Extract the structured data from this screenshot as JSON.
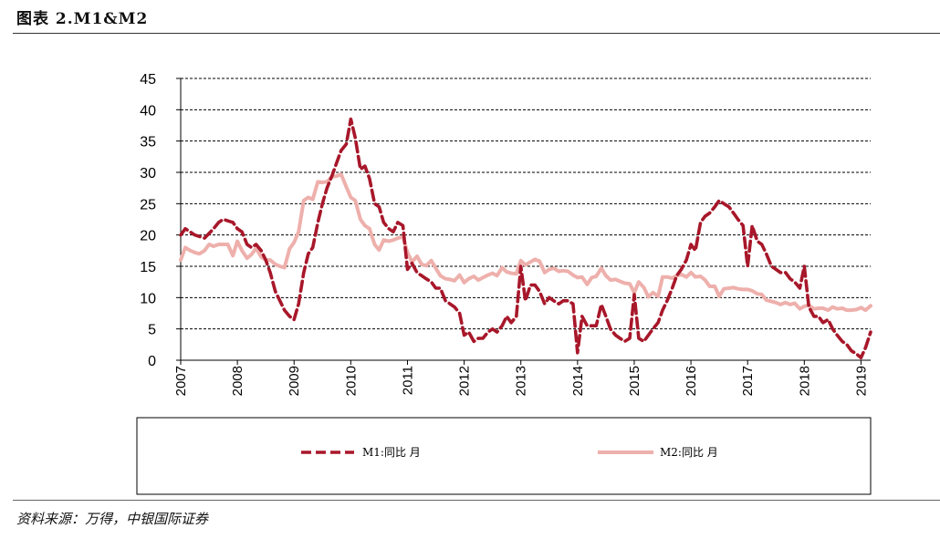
{
  "header": {
    "title": "图表 2.M1&M2"
  },
  "footer": {
    "source": "资料来源：万得，中银国际证券"
  },
  "chart_data": {
    "type": "line",
    "ylim": [
      0,
      45
    ],
    "yticks": [
      0,
      5,
      10,
      15,
      20,
      25,
      30,
      35,
      40,
      45
    ],
    "xlim": [
      2007.0,
      2019.17
    ],
    "xticks": [
      "2007",
      "2008",
      "2009",
      "2010",
      "2011",
      "2012",
      "2013",
      "2014",
      "2015",
      "2016",
      "2017",
      "2018",
      "2019"
    ],
    "grid": true,
    "legend_position": "bottom",
    "colors": {
      "m1": "#a8172a",
      "m2": "#eeb0ac"
    },
    "series": [
      {
        "name": "M1:同比 月",
        "style": "dashed",
        "points": [
          [
            2007.0,
            20.0
          ],
          [
            2007.08,
            21.0
          ],
          [
            2007.25,
            20.0
          ],
          [
            2007.42,
            19.5
          ],
          [
            2007.58,
            21.0
          ],
          [
            2007.67,
            22.0
          ],
          [
            2007.75,
            22.5
          ],
          [
            2007.92,
            22.0
          ],
          [
            2008.0,
            21.0
          ],
          [
            2008.08,
            20.5
          ],
          [
            2008.17,
            18.5
          ],
          [
            2008.25,
            18.0
          ],
          [
            2008.33,
            18.5
          ],
          [
            2008.42,
            17.5
          ],
          [
            2008.5,
            16.0
          ],
          [
            2008.58,
            14.0
          ],
          [
            2008.67,
            11.0
          ],
          [
            2008.75,
            9.5
          ],
          [
            2008.83,
            8.0
          ],
          [
            2008.92,
            7.0
          ],
          [
            2009.0,
            6.5
          ],
          [
            2009.08,
            9.0
          ],
          [
            2009.17,
            14.0
          ],
          [
            2009.25,
            17.0
          ],
          [
            2009.33,
            18.0
          ],
          [
            2009.42,
            22.0
          ],
          [
            2009.5,
            25.0
          ],
          [
            2009.58,
            27.5
          ],
          [
            2009.67,
            29.5
          ],
          [
            2009.75,
            31.5
          ],
          [
            2009.83,
            33.5
          ],
          [
            2009.92,
            34.5
          ],
          [
            2010.0,
            38.5
          ],
          [
            2010.08,
            35.5
          ],
          [
            2010.17,
            30.5
          ],
          [
            2010.25,
            31.0
          ],
          [
            2010.33,
            29.0
          ],
          [
            2010.42,
            25.0
          ],
          [
            2010.5,
            24.5
          ],
          [
            2010.58,
            22.0
          ],
          [
            2010.67,
            21.0
          ],
          [
            2010.75,
            20.5
          ],
          [
            2010.83,
            22.0
          ],
          [
            2010.92,
            21.5
          ],
          [
            2011.0,
            14.5
          ],
          [
            2011.08,
            15.5
          ],
          [
            2011.17,
            14.0
          ],
          [
            2011.25,
            13.5
          ],
          [
            2011.33,
            13.0
          ],
          [
            2011.42,
            12.5
          ],
          [
            2011.5,
            11.5
          ],
          [
            2011.58,
            11.5
          ],
          [
            2011.67,
            9.5
          ],
          [
            2011.75,
            9.0
          ],
          [
            2011.83,
            8.5
          ],
          [
            2011.92,
            7.5
          ],
          [
            2012.0,
            4.0
          ],
          [
            2012.08,
            4.5
          ],
          [
            2012.17,
            3.0
          ],
          [
            2012.25,
            3.5
          ],
          [
            2012.33,
            3.5
          ],
          [
            2012.42,
            4.5
          ],
          [
            2012.5,
            5.0
          ],
          [
            2012.58,
            4.5
          ],
          [
            2012.67,
            5.5
          ],
          [
            2012.75,
            7.0
          ],
          [
            2012.83,
            6.0
          ],
          [
            2012.92,
            7.0
          ],
          [
            2013.0,
            15.0
          ],
          [
            2013.08,
            9.5
          ],
          [
            2013.17,
            12.0
          ],
          [
            2013.25,
            12.0
          ],
          [
            2013.33,
            11.0
          ],
          [
            2013.42,
            9.0
          ],
          [
            2013.5,
            10.0
          ],
          [
            2013.58,
            9.5
          ],
          [
            2013.67,
            9.0
          ],
          [
            2013.75,
            9.5
          ],
          [
            2013.83,
            9.5
          ],
          [
            2013.92,
            9.0
          ],
          [
            2014.0,
            1.2
          ],
          [
            2014.08,
            7.0
          ],
          [
            2014.17,
            5.5
          ],
          [
            2014.25,
            5.5
          ],
          [
            2014.33,
            5.5
          ],
          [
            2014.42,
            8.9
          ],
          [
            2014.5,
            7.0
          ],
          [
            2014.58,
            5.0
          ],
          [
            2014.67,
            4.0
          ],
          [
            2014.75,
            3.5
          ],
          [
            2014.83,
            3.0
          ],
          [
            2014.92,
            3.5
          ],
          [
            2015.0,
            10.5
          ],
          [
            2015.08,
            3.5
          ],
          [
            2015.17,
            3.0
          ],
          [
            2015.25,
            4.0
          ],
          [
            2015.33,
            5.0
          ],
          [
            2015.42,
            6.0
          ],
          [
            2015.5,
            8.0
          ],
          [
            2015.58,
            9.5
          ],
          [
            2015.67,
            11.5
          ],
          [
            2015.75,
            13.5
          ],
          [
            2015.83,
            14.5
          ],
          [
            2015.92,
            16.0
          ],
          [
            2016.0,
            18.5
          ],
          [
            2016.08,
            17.5
          ],
          [
            2016.17,
            22.0
          ],
          [
            2016.25,
            23.0
          ],
          [
            2016.33,
            23.5
          ],
          [
            2016.42,
            24.5
          ],
          [
            2016.5,
            25.5
          ],
          [
            2016.58,
            25.0
          ],
          [
            2016.67,
            24.5
          ],
          [
            2016.75,
            23.5
          ],
          [
            2016.83,
            22.5
          ],
          [
            2016.92,
            21.5
          ],
          [
            2017.0,
            15.0
          ],
          [
            2017.08,
            21.5
          ],
          [
            2017.17,
            19.0
          ],
          [
            2017.25,
            18.5
          ],
          [
            2017.33,
            17.0
          ],
          [
            2017.42,
            15.0
          ],
          [
            2017.5,
            14.5
          ],
          [
            2017.58,
            14.0
          ],
          [
            2017.67,
            14.0
          ],
          [
            2017.75,
            13.0
          ],
          [
            2017.83,
            12.5
          ],
          [
            2017.92,
            11.5
          ],
          [
            2018.0,
            15.0
          ],
          [
            2018.08,
            8.5
          ],
          [
            2018.17,
            7.0
          ],
          [
            2018.25,
            7.0
          ],
          [
            2018.33,
            6.0
          ],
          [
            2018.42,
            6.5
          ],
          [
            2018.5,
            5.0
          ],
          [
            2018.58,
            4.0
          ],
          [
            2018.67,
            3.0
          ],
          [
            2018.75,
            2.5
          ],
          [
            2018.83,
            1.5
          ],
          [
            2018.92,
            1.0
          ],
          [
            2019.0,
            0.4
          ],
          [
            2019.08,
            2.0
          ],
          [
            2019.17,
            4.5
          ]
        ]
      },
      {
        "name": "M2:同比 月",
        "style": "solid",
        "points": [
          [
            2007.0,
            16.0
          ],
          [
            2007.08,
            18.0
          ],
          [
            2007.17,
            17.5
          ],
          [
            2007.25,
            17.2
          ],
          [
            2007.33,
            17.0
          ],
          [
            2007.42,
            17.5
          ],
          [
            2007.5,
            18.5
          ],
          [
            2007.58,
            18.2
          ],
          [
            2007.67,
            18.5
          ],
          [
            2007.75,
            18.5
          ],
          [
            2007.83,
            18.5
          ],
          [
            2007.92,
            16.7
          ],
          [
            2008.0,
            19.0
          ],
          [
            2008.08,
            17.5
          ],
          [
            2008.17,
            16.3
          ],
          [
            2008.25,
            16.9
          ],
          [
            2008.33,
            17.9
          ],
          [
            2008.42,
            16.5
          ],
          [
            2008.5,
            16.0
          ],
          [
            2008.58,
            16.0
          ],
          [
            2008.67,
            15.3
          ],
          [
            2008.75,
            15.0
          ],
          [
            2008.83,
            14.8
          ],
          [
            2008.92,
            17.8
          ],
          [
            2009.0,
            18.8
          ],
          [
            2009.08,
            20.5
          ],
          [
            2009.17,
            25.5
          ],
          [
            2009.25,
            26.0
          ],
          [
            2009.33,
            25.7
          ],
          [
            2009.42,
            28.5
          ],
          [
            2009.5,
            28.4
          ],
          [
            2009.58,
            28.5
          ],
          [
            2009.67,
            29.3
          ],
          [
            2009.75,
            29.4
          ],
          [
            2009.83,
            29.7
          ],
          [
            2009.92,
            27.7
          ],
          [
            2010.0,
            26.0
          ],
          [
            2010.08,
            25.5
          ],
          [
            2010.17,
            22.5
          ],
          [
            2010.25,
            21.5
          ],
          [
            2010.33,
            21.0
          ],
          [
            2010.42,
            18.5
          ],
          [
            2010.5,
            17.6
          ],
          [
            2010.58,
            19.2
          ],
          [
            2010.67,
            19.0
          ],
          [
            2010.75,
            19.2
          ],
          [
            2010.83,
            19.5
          ],
          [
            2010.92,
            19.7
          ],
          [
            2011.0,
            17.2
          ],
          [
            2011.08,
            15.7
          ],
          [
            2011.17,
            16.6
          ],
          [
            2011.25,
            15.3
          ],
          [
            2011.33,
            15.1
          ],
          [
            2011.42,
            15.9
          ],
          [
            2011.5,
            14.7
          ],
          [
            2011.58,
            13.5
          ],
          [
            2011.67,
            13.0
          ],
          [
            2011.75,
            12.9
          ],
          [
            2011.83,
            12.7
          ],
          [
            2011.92,
            13.6
          ],
          [
            2012.0,
            12.4
          ],
          [
            2012.08,
            13.0
          ],
          [
            2012.17,
            13.4
          ],
          [
            2012.25,
            12.8
          ],
          [
            2012.33,
            13.2
          ],
          [
            2012.42,
            13.6
          ],
          [
            2012.5,
            13.9
          ],
          [
            2012.58,
            13.5
          ],
          [
            2012.67,
            14.8
          ],
          [
            2012.75,
            14.1
          ],
          [
            2012.83,
            13.9
          ],
          [
            2012.92,
            13.8
          ],
          [
            2013.0,
            15.9
          ],
          [
            2013.08,
            15.2
          ],
          [
            2013.17,
            15.7
          ],
          [
            2013.25,
            16.1
          ],
          [
            2013.33,
            15.8
          ],
          [
            2013.42,
            14.0
          ],
          [
            2013.5,
            14.5
          ],
          [
            2013.58,
            14.7
          ],
          [
            2013.67,
            14.2
          ],
          [
            2013.75,
            14.3
          ],
          [
            2013.83,
            14.2
          ],
          [
            2013.92,
            13.6
          ],
          [
            2014.0,
            13.2
          ],
          [
            2014.08,
            13.3
          ],
          [
            2014.17,
            12.1
          ],
          [
            2014.25,
            13.2
          ],
          [
            2014.33,
            13.4
          ],
          [
            2014.42,
            14.7
          ],
          [
            2014.5,
            13.5
          ],
          [
            2014.58,
            12.8
          ],
          [
            2014.67,
            12.9
          ],
          [
            2014.75,
            12.6
          ],
          [
            2014.83,
            12.3
          ],
          [
            2014.92,
            12.2
          ],
          [
            2015.0,
            10.8
          ],
          [
            2015.08,
            12.5
          ],
          [
            2015.17,
            11.6
          ],
          [
            2015.25,
            10.1
          ],
          [
            2015.33,
            10.8
          ],
          [
            2015.42,
            10.2
          ],
          [
            2015.5,
            13.3
          ],
          [
            2015.58,
            13.3
          ],
          [
            2015.67,
            13.1
          ],
          [
            2015.75,
            13.5
          ],
          [
            2015.83,
            13.7
          ],
          [
            2015.92,
            13.3
          ],
          [
            2016.0,
            14.0
          ],
          [
            2016.08,
            13.3
          ],
          [
            2016.17,
            13.4
          ],
          [
            2016.25,
            12.8
          ],
          [
            2016.33,
            11.8
          ],
          [
            2016.42,
            11.8
          ],
          [
            2016.5,
            10.2
          ],
          [
            2016.58,
            11.4
          ],
          [
            2016.67,
            11.5
          ],
          [
            2016.75,
            11.6
          ],
          [
            2016.83,
            11.4
          ],
          [
            2016.92,
            11.3
          ],
          [
            2017.0,
            11.3
          ],
          [
            2017.08,
            11.1
          ],
          [
            2017.17,
            10.6
          ],
          [
            2017.25,
            10.5
          ],
          [
            2017.33,
            9.6
          ],
          [
            2017.42,
            9.4
          ],
          [
            2017.5,
            9.2
          ],
          [
            2017.58,
            8.9
          ],
          [
            2017.67,
            9.2
          ],
          [
            2017.75,
            8.9
          ],
          [
            2017.83,
            9.1
          ],
          [
            2017.92,
            8.2
          ],
          [
            2018.0,
            8.6
          ],
          [
            2018.08,
            8.8
          ],
          [
            2018.17,
            8.2
          ],
          [
            2018.25,
            8.3
          ],
          [
            2018.33,
            8.3
          ],
          [
            2018.42,
            8.0
          ],
          [
            2018.5,
            8.5
          ],
          [
            2018.58,
            8.2
          ],
          [
            2018.67,
            8.3
          ],
          [
            2018.75,
            8.0
          ],
          [
            2018.83,
            8.0
          ],
          [
            2018.92,
            8.1
          ],
          [
            2019.0,
            8.4
          ],
          [
            2019.08,
            8.0
          ],
          [
            2019.17,
            8.7
          ]
        ]
      }
    ]
  }
}
